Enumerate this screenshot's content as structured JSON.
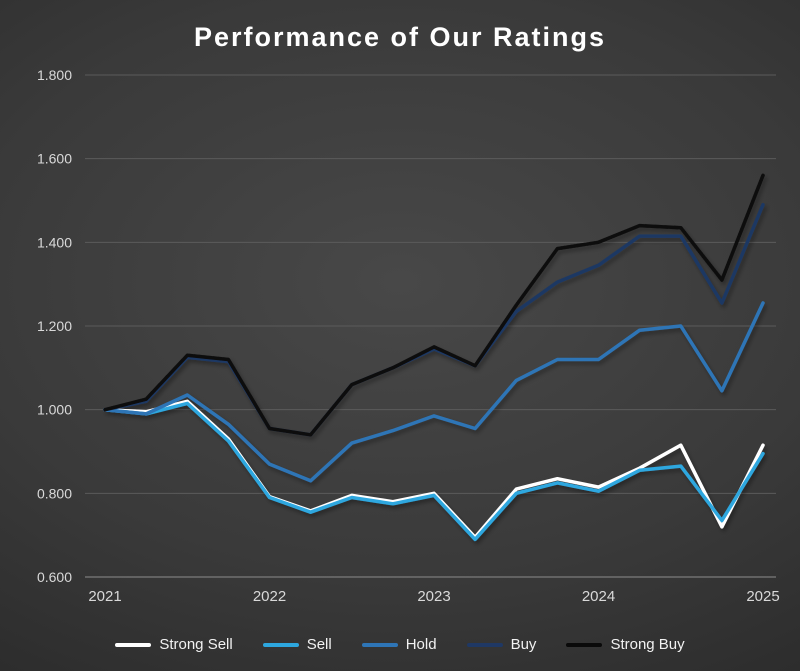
{
  "title": "Performance of Our Ratings",
  "chart_data": {
    "type": "line",
    "title": "Performance of Our Ratings",
    "xlabel": "",
    "ylabel": "",
    "xlim": [
      2021,
      2025
    ],
    "ylim": [
      0.6,
      1.8
    ],
    "grid": "horizontal",
    "legend_position": "bottom",
    "x": [
      2021,
      2021.25,
      2021.5,
      2021.75,
      2022,
      2022.25,
      2022.5,
      2022.75,
      2023,
      2023.25,
      2023.5,
      2023.75,
      2024,
      2024.25,
      2024.5,
      2024.75,
      2025
    ],
    "x_tick_values": [
      2021,
      2022,
      2023,
      2024,
      2025
    ],
    "x_tick_labels": [
      "2021",
      "2022",
      "2023",
      "2024",
      "2025"
    ],
    "y_tick_values": [
      0.6,
      0.8,
      1.0,
      1.2,
      1.4,
      1.6,
      1.8
    ],
    "y_tick_labels": [
      "0.600",
      "0.800",
      "1.000",
      "1.200",
      "1.400",
      "1.600",
      "1.800"
    ],
    "series": [
      {
        "name": "Strong Sell",
        "color": "#ffffff",
        "values": [
          1.0,
          0.995,
          1.02,
          0.93,
          0.792,
          0.758,
          0.795,
          0.78,
          0.8,
          0.695,
          0.81,
          0.835,
          0.815,
          0.86,
          0.915,
          0.72,
          0.915
        ]
      },
      {
        "name": "Sell",
        "color": "#2da7df",
        "values": [
          1.0,
          0.99,
          1.015,
          0.925,
          0.79,
          0.755,
          0.79,
          0.775,
          0.795,
          0.69,
          0.8,
          0.825,
          0.805,
          0.855,
          0.865,
          0.735,
          0.895
        ]
      },
      {
        "name": "Hold",
        "color": "#2e75b6",
        "values": [
          1.0,
          0.99,
          1.035,
          0.965,
          0.87,
          0.83,
          0.92,
          0.95,
          0.985,
          0.955,
          1.07,
          1.12,
          1.12,
          1.19,
          1.2,
          1.045,
          1.255
        ]
      },
      {
        "name": "Buy",
        "color": "#1f3864",
        "values": [
          1.0,
          1.02,
          1.125,
          1.115,
          0.955,
          0.94,
          1.06,
          1.1,
          1.145,
          1.105,
          1.235,
          1.305,
          1.345,
          1.415,
          1.415,
          1.255,
          1.49
        ]
      },
      {
        "name": "Strong Buy",
        "color": "#0a0a0a",
        "values": [
          1.0,
          1.025,
          1.13,
          1.12,
          0.955,
          0.94,
          1.06,
          1.1,
          1.15,
          1.105,
          1.25,
          1.385,
          1.4,
          1.44,
          1.435,
          1.31,
          1.56
        ]
      }
    ],
    "colors": {
      "grid": "#5b5b5b",
      "axis_line": "#7c7c7c",
      "axis_text": "#d9d9d9",
      "title_text": "#ffffff",
      "legend_text": "#f2f2f2"
    }
  }
}
